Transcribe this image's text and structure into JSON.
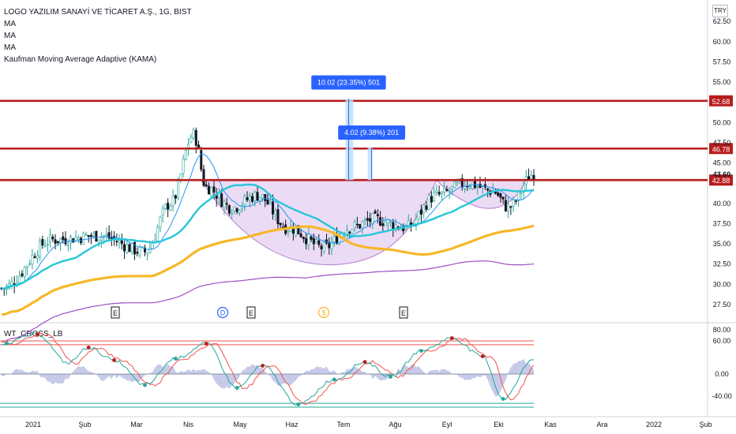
{
  "header": {
    "symbol_title": "LOGO YAZILIM SANAYİ VE TİCARET A.Ş., 1G, BIST",
    "indicators": [
      "MA",
      "MA",
      "MA",
      "Kaufman Moving Average Adaptive (KAMA)"
    ],
    "currency": "TRY"
  },
  "oscillator": {
    "title": "WT_CROSS_LB"
  },
  "colors": {
    "up": "#26a69a",
    "down": "#131722",
    "resistance": "#b71c1c",
    "ma_fast": "#2196f3",
    "ma_mid": "#26c6da",
    "ma_slow": "#f6b829",
    "kama": "#9c4fc2",
    "cup_fill": "#e9d5f3",
    "measure": "#2962ff"
  },
  "chart_data": [
    {
      "type": "candlestick",
      "title": "LOGO YAZILIM SANAYİ VE TİCARET A.Ş., 1G, BIST",
      "x_axis": {
        "labels": [
          "2021",
          "Şub",
          "Mar",
          "Nis",
          "May",
          "Haz",
          "Tem",
          "Ağu",
          "Eyl",
          "Eki",
          "Kas",
          "Ara",
          "2022",
          "Şub"
        ]
      },
      "y_axis": {
        "range": [
          25.0,
          64.0
        ],
        "ticks": [
          "62.50",
          "60.00",
          "57.50",
          "55.00",
          "50.00",
          "47.50",
          "45.00",
          "40.00",
          "37.50",
          "35.00",
          "32.50",
          "30.00",
          "27.50"
        ]
      },
      "price_key_points": [
        {
          "day": 0,
          "close": 29.5
        },
        {
          "day": 20,
          "close": 35.5
        },
        {
          "day": 38,
          "close": 36.0
        },
        {
          "day": 56,
          "close": 34.0
        },
        {
          "day": 66,
          "close": 40.0
        },
        {
          "day": 75,
          "close": 48.5
        },
        {
          "day": 80,
          "close": 42.0
        },
        {
          "day": 90,
          "close": 39.5
        },
        {
          "day": 100,
          "close": 41.0
        },
        {
          "day": 112,
          "close": 37.0
        },
        {
          "day": 126,
          "close": 34.5
        },
        {
          "day": 136,
          "close": 37.0
        },
        {
          "day": 146,
          "close": 38.0
        },
        {
          "day": 158,
          "close": 37.0
        },
        {
          "day": 170,
          "close": 41.0
        },
        {
          "day": 182,
          "close": 42.5
        },
        {
          "day": 192,
          "close": 41.5
        },
        {
          "day": 198,
          "close": 39.5
        },
        {
          "day": 208,
          "close": 43.6
        }
      ],
      "resistance_levels": [
        52.68,
        46.78,
        42.88
      ],
      "price_labels": {
        "last": "43.60",
        "r1": "52.68",
        "r2": "46.78",
        "r3": "42.88"
      },
      "measurements": [
        {
          "label": "10.02 (23.35%) 501",
          "from": 42.88,
          "to": 52.9
        },
        {
          "label": "4.02 (9.38%) 201",
          "from": 42.88,
          "to": 46.9
        }
      ],
      "markers": [
        "E",
        "D",
        "E",
        "$",
        "E"
      ]
    },
    {
      "type": "line",
      "title": "WT_CROSS_LB",
      "y_axis": {
        "range": [
          -65,
          92
        ],
        "ticks": [
          "80.00",
          "60.00",
          "0.00",
          "-40.00"
        ]
      },
      "levels": {
        "overbought": [
          60,
          53
        ],
        "oversold": [
          -53,
          -60
        ]
      },
      "wave_key_points": [
        {
          "day": 0,
          "value": 55
        },
        {
          "day": 14,
          "value": 72
        },
        {
          "day": 26,
          "value": 20
        },
        {
          "day": 34,
          "value": 48
        },
        {
          "day": 44,
          "value": 25
        },
        {
          "day": 56,
          "value": -20
        },
        {
          "day": 68,
          "value": 28
        },
        {
          "day": 80,
          "value": 55
        },
        {
          "day": 92,
          "value": -25
        },
        {
          "day": 102,
          "value": 15
        },
        {
          "day": 116,
          "value": -55
        },
        {
          "day": 130,
          "value": -10
        },
        {
          "day": 142,
          "value": 22
        },
        {
          "day": 152,
          "value": -5
        },
        {
          "day": 164,
          "value": 42
        },
        {
          "day": 176,
          "value": 65
        },
        {
          "day": 188,
          "value": 32
        },
        {
          "day": 196,
          "value": -45
        },
        {
          "day": 208,
          "value": 28
        }
      ]
    }
  ]
}
